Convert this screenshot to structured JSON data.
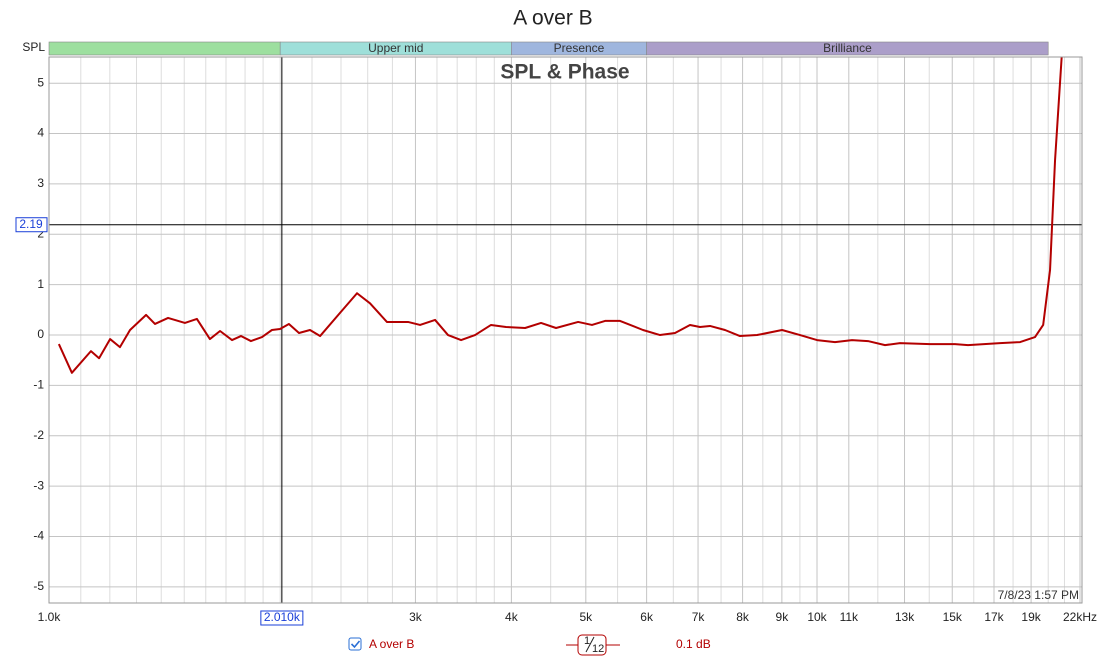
{
  "chart_data": {
    "type": "line",
    "title": "A over B",
    "plot_title": "SPL & Phase",
    "band_axis_label": "SPL",
    "timestamp": "7/8/23 1:57 PM",
    "log_x": true,
    "grid": true,
    "xlim": [
      1000,
      22000
    ],
    "ylim": [
      -5.32,
      5.52
    ],
    "xticks": [
      {
        "value": 1000,
        "label": "1.0k"
      },
      {
        "value": 3000,
        "label": "3k"
      },
      {
        "value": 4000,
        "label": "4k"
      },
      {
        "value": 5000,
        "label": "5k"
      },
      {
        "value": 6000,
        "label": "6k"
      },
      {
        "value": 7000,
        "label": "7k"
      },
      {
        "value": 8000,
        "label": "8k"
      },
      {
        "value": 9000,
        "label": "9k"
      },
      {
        "value": 10000,
        "label": "10k"
      },
      {
        "value": 11000,
        "label": "11k"
      },
      {
        "value": 13000,
        "label": "13k"
      },
      {
        "value": 15000,
        "label": "15k"
      },
      {
        "value": 17000,
        "label": "17k"
      },
      {
        "value": 19000,
        "label": "19k"
      },
      {
        "value": 22000,
        "label": "22kHz"
      }
    ],
    "xminor": [
      1100,
      1200,
      1300,
      1400,
      1500,
      1600,
      1700,
      1800,
      1900,
      2000,
      2200,
      2400,
      2600,
      2800,
      3200,
      3400,
      3600,
      3800,
      4500,
      5500,
      6500,
      7500,
      8500,
      9500,
      12000,
      14000,
      16000,
      18000,
      20000,
      21000
    ],
    "yticks": [
      -5,
      -4,
      -3,
      -2,
      -1,
      0,
      1,
      2,
      3,
      4,
      5
    ],
    "bands": [
      {
        "start": 1000,
        "end": 2000,
        "label": null,
        "color": "#9ddf9f"
      },
      {
        "start": 2000,
        "end": 4000,
        "label": "Upper mid",
        "color": "#9edfd9"
      },
      {
        "start": 4000,
        "end": 6000,
        "label": "Presence",
        "color": "#9fb6de"
      },
      {
        "start": 6000,
        "end": 20000,
        "label": "Brilliance",
        "color": "#ab9ec9"
      }
    ],
    "cursor": {
      "x": {
        "value": 2010,
        "label": "2.010k"
      },
      "y": 2.19
    },
    "legend": {
      "smoothing_numerator": "1",
      "smoothing_denominator": "12",
      "resolution": "0.1 dB"
    },
    "x": [
      1030,
      1071,
      1134,
      1162,
      1201,
      1237,
      1275,
      1338,
      1374,
      1429,
      1503,
      1558,
      1620,
      1670,
      1731,
      1778,
      1832,
      1894,
      1951,
      1999,
      2053,
      2116,
      2187,
      2254,
      2393,
      2518,
      2618,
      2754,
      2934,
      3042,
      3182,
      3308,
      3440,
      3587,
      3763,
      3936,
      4168,
      4372,
      4573,
      4886,
      5093,
      5297,
      5540,
      5935,
      6246,
      6533,
      6833,
      7041,
      7255,
      7589,
      7937,
      8355,
      9005,
      9504,
      10000,
      10554,
      11106,
      11651,
      12262,
      12825,
      14033,
      15124,
      15726,
      17312,
      18383,
      19224,
      19700,
      20110,
      20414,
      20840
    ],
    "series": [
      {
        "name": "A over B",
        "color": "#b30000",
        "values": [
          -0.18,
          -0.75,
          -0.32,
          -0.46,
          -0.08,
          -0.24,
          0.1,
          0.4,
          0.22,
          0.34,
          0.24,
          0.32,
          -0.08,
          0.08,
          -0.1,
          -0.02,
          -0.12,
          -0.04,
          0.1,
          0.12,
          0.22,
          0.04,
          0.1,
          -0.02,
          0.44,
          0.83,
          0.63,
          0.26,
          0.26,
          0.2,
          0.3,
          0,
          -0.1,
          0,
          0.2,
          0.16,
          0.14,
          0.24,
          0.14,
          0.26,
          0.2,
          0.28,
          0.28,
          0.1,
          0,
          0.04,
          0.2,
          0.16,
          0.18,
          0.1,
          -0.02,
          0,
          0.1,
          0,
          -0.1,
          -0.14,
          -0.1,
          -0.12,
          -0.2,
          -0.16,
          -0.18,
          -0.18,
          -0.2,
          -0.16,
          -0.14,
          -0.04,
          0.2,
          1.29,
          3.47,
          5.6
        ]
      }
    ]
  }
}
